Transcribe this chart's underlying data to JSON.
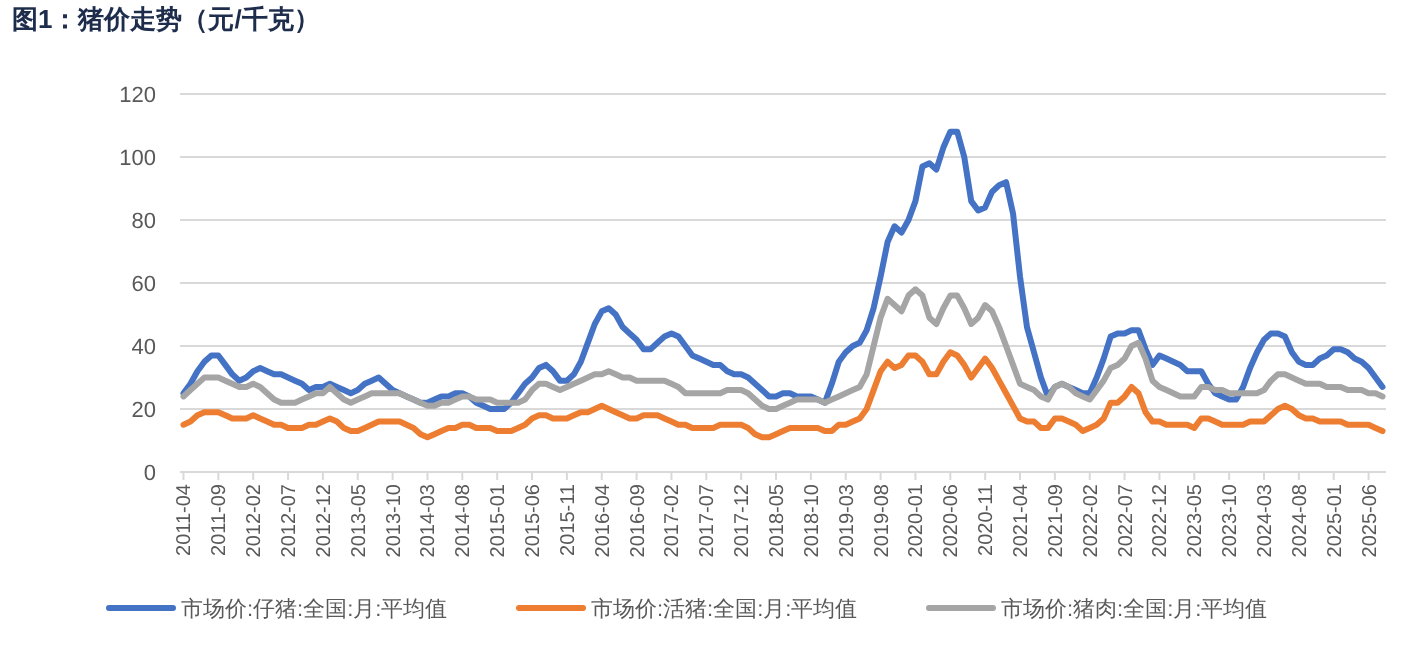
{
  "chart_data": {
    "type": "line",
    "title": "图1：猪价走势（元/千克）",
    "categories": [
      "2011-04",
      null,
      null,
      null,
      null,
      "2011-09",
      null,
      null,
      null,
      null,
      "2012-02",
      null,
      null,
      null,
      null,
      "2012-07",
      null,
      null,
      null,
      null,
      "2012-12",
      null,
      null,
      null,
      null,
      "2013-05",
      null,
      null,
      null,
      null,
      "2013-10",
      null,
      null,
      null,
      null,
      "2014-03",
      null,
      null,
      null,
      null,
      "2014-08",
      null,
      null,
      null,
      null,
      "2015-01",
      null,
      null,
      null,
      null,
      "2015-06",
      null,
      null,
      null,
      null,
      "2015-11",
      null,
      null,
      null,
      null,
      "2016-04",
      null,
      null,
      null,
      null,
      "2016-09",
      null,
      null,
      null,
      null,
      "2017-02",
      null,
      null,
      null,
      null,
      "2017-07",
      null,
      null,
      null,
      null,
      "2017-12",
      null,
      null,
      null,
      null,
      "2018-05",
      null,
      null,
      null,
      null,
      "2018-10",
      null,
      null,
      null,
      null,
      "2019-03",
      null,
      null,
      null,
      null,
      "2019-08",
      null,
      null,
      null,
      null,
      "2020-01",
      null,
      null,
      null,
      null,
      "2020-06",
      null,
      null,
      null,
      null,
      "2020-11",
      null,
      null,
      null,
      null,
      "2021-04",
      null,
      null,
      null,
      null,
      "2021-09",
      null,
      null,
      null,
      null,
      "2022-02",
      null,
      null,
      null,
      null,
      "2022-07",
      null,
      null,
      null,
      null,
      "2022-12",
      null,
      null,
      null,
      null,
      "2023-05",
      null,
      null,
      null,
      null,
      "2023-10",
      null,
      null,
      null,
      null,
      "2024-03",
      null,
      null,
      null,
      null,
      "2024-08",
      null,
      null,
      null,
      null,
      "2025-01",
      null,
      null,
      null,
      null,
      "2025-06",
      null,
      null
    ],
    "series": [
      {
        "name": "市场价:仔猪:全国:月:平均值",
        "color": "#4472c4",
        "values": [
          25,
          28,
          32,
          35,
          37,
          37,
          34,
          31,
          29,
          30,
          32,
          33,
          32,
          31,
          31,
          30,
          29,
          28,
          26,
          27,
          27,
          28,
          27,
          26,
          25,
          26,
          28,
          29,
          30,
          28,
          26,
          25,
          24,
          23,
          22,
          22,
          23,
          24,
          24,
          25,
          25,
          24,
          22,
          21,
          20,
          20,
          20,
          22,
          25,
          28,
          30,
          33,
          34,
          32,
          29,
          29,
          31,
          35,
          41,
          47,
          51,
          52,
          50,
          46,
          44,
          42,
          39,
          39,
          41,
          43,
          44,
          43,
          40,
          37,
          36,
          35,
          34,
          34,
          32,
          31,
          31,
          30,
          28,
          26,
          24,
          24,
          25,
          25,
          24,
          24,
          24,
          23,
          22,
          28,
          35,
          38,
          40,
          41,
          45,
          52,
          62,
          73,
          78,
          76,
          80,
          86,
          97,
          98,
          96,
          103,
          108,
          108,
          100,
          86,
          83,
          84,
          89,
          91,
          92,
          82,
          62,
          46,
          38,
          30,
          24,
          27,
          28,
          27,
          26,
          25,
          25,
          30,
          36,
          43,
          44,
          44,
          45,
          45,
          39,
          34,
          37,
          36,
          35,
          34,
          32,
          32,
          32,
          28,
          25,
          24,
          23,
          23,
          27,
          33,
          38,
          42,
          44,
          44,
          43,
          38,
          35,
          34,
          34,
          36,
          37,
          39,
          39,
          38,
          36,
          35,
          33,
          30,
          27
        ]
      },
      {
        "name": "市场价:活猪:全国:月:平均值",
        "color": "#ed7d31",
        "values": [
          15,
          16,
          18,
          19,
          19,
          19,
          18,
          17,
          17,
          17,
          18,
          17,
          16,
          15,
          15,
          14,
          14,
          14,
          15,
          15,
          16,
          17,
          16,
          14,
          13,
          13,
          14,
          15,
          16,
          16,
          16,
          16,
          15,
          14,
          12,
          11,
          12,
          13,
          14,
          14,
          15,
          15,
          14,
          14,
          14,
          13,
          13,
          13,
          14,
          15,
          17,
          18,
          18,
          17,
          17,
          17,
          18,
          19,
          19,
          20,
          21,
          20,
          19,
          18,
          17,
          17,
          18,
          18,
          18,
          17,
          16,
          15,
          15,
          14,
          14,
          14,
          14,
          15,
          15,
          15,
          15,
          14,
          12,
          11,
          11,
          12,
          13,
          14,
          14,
          14,
          14,
          14,
          13,
          13,
          15,
          15,
          16,
          17,
          20,
          26,
          32,
          35,
          33,
          34,
          37,
          37,
          35,
          31,
          31,
          35,
          38,
          37,
          34,
          30,
          33,
          36,
          33,
          29,
          25,
          21,
          17,
          16,
          16,
          14,
          14,
          17,
          17,
          16,
          15,
          13,
          14,
          15,
          17,
          22,
          22,
          24,
          27,
          25,
          19,
          16,
          16,
          15,
          15,
          15,
          15,
          14,
          17,
          17,
          16,
          15,
          15,
          15,
          15,
          16,
          16,
          16,
          18,
          20,
          21,
          20,
          18,
          17,
          17,
          16,
          16,
          16,
          16,
          15,
          15,
          15,
          15,
          14,
          13
        ]
      },
      {
        "name": "市场价:猪肉:全国:月:平均值",
        "color": "#a5a5a5",
        "values": [
          24,
          26,
          28,
          30,
          30,
          30,
          29,
          28,
          27,
          27,
          28,
          27,
          25,
          23,
          22,
          22,
          22,
          23,
          24,
          25,
          25,
          27,
          25,
          23,
          22,
          23,
          24,
          25,
          25,
          25,
          25,
          25,
          24,
          23,
          22,
          21,
          21,
          22,
          22,
          23,
          24,
          24,
          23,
          23,
          23,
          22,
          22,
          22,
          22,
          23,
          26,
          28,
          28,
          27,
          26,
          27,
          28,
          29,
          30,
          31,
          31,
          32,
          31,
          30,
          30,
          29,
          29,
          29,
          29,
          29,
          28,
          27,
          25,
          25,
          25,
          25,
          25,
          25,
          26,
          26,
          26,
          25,
          23,
          21,
          20,
          20,
          21,
          22,
          23,
          23,
          23,
          23,
          22,
          23,
          24,
          25,
          26,
          27,
          31,
          40,
          49,
          55,
          53,
          51,
          56,
          58,
          56,
          49,
          47,
          52,
          56,
          56,
          52,
          47,
          49,
          53,
          51,
          46,
          40,
          34,
          28,
          27,
          26,
          24,
          23,
          27,
          28,
          27,
          25,
          24,
          23,
          26,
          29,
          33,
          34,
          36,
          40,
          41,
          36,
          29,
          27,
          26,
          25,
          24,
          24,
          24,
          27,
          27,
          26,
          26,
          25,
          25,
          25,
          25,
          25,
          26,
          29,
          31,
          31,
          30,
          29,
          28,
          28,
          28,
          27,
          27,
          27,
          26,
          26,
          26,
          25,
          25,
          24
        ]
      }
    ],
    "ylim": [
      0,
      120
    ],
    "yticks": [
      0,
      20,
      40,
      60,
      80,
      100,
      120
    ],
    "grid": "y",
    "legend": "bottom",
    "line_style": "solid",
    "marker": "none"
  }
}
